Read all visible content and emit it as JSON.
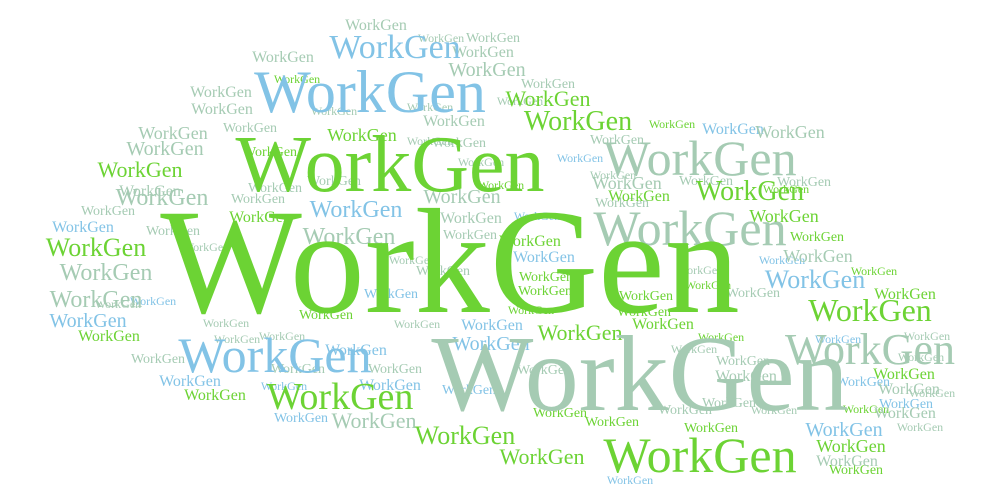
{
  "word": "WorkGen",
  "colors": {
    "green": "#6cd334",
    "blue": "#82c3e6",
    "sage": "#a5cbb3",
    "background": "#ffffff"
  }
}
